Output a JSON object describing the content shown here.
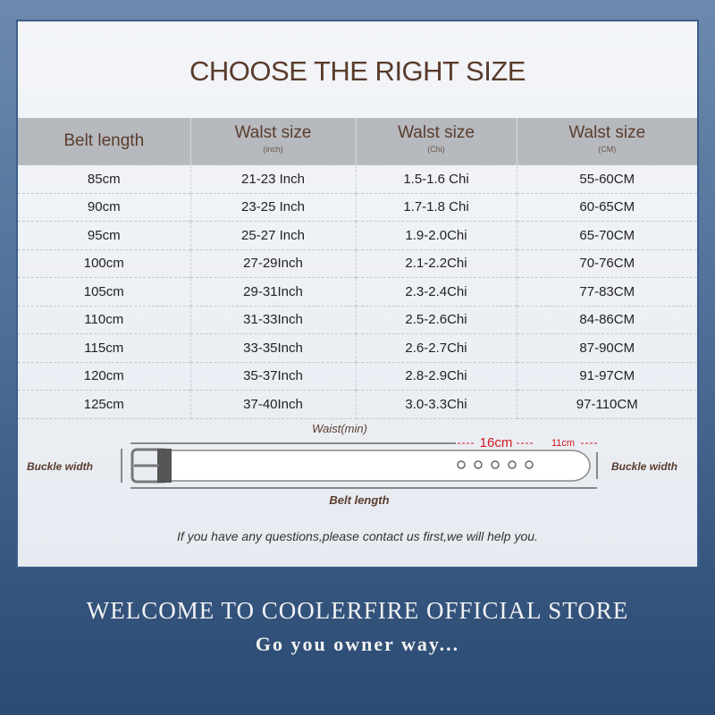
{
  "title": "CHOOSE THE RIGHT SIZE",
  "table": {
    "headers": [
      {
        "label": "Belt length",
        "unit": ""
      },
      {
        "label": "Walst size",
        "unit": "(inch)"
      },
      {
        "label": "Walst size",
        "unit": "(Chi)"
      },
      {
        "label": "Walst size",
        "unit": "(CM)"
      }
    ],
    "rows": [
      [
        "85cm",
        "21-23 Inch",
        "1.5-1.6 Chi",
        "55-60CM"
      ],
      [
        "90cm",
        "23-25 Inch",
        "1.7-1.8 Chi",
        "60-65CM"
      ],
      [
        "95cm",
        "25-27 Inch",
        "1.9-2.0Chi",
        "65-70CM"
      ],
      [
        "100cm",
        "27-29Inch",
        "2.1-2.2Chi",
        "70-76CM"
      ],
      [
        "105cm",
        "29-31Inch",
        "2.3-2.4Chi",
        "77-83CM"
      ],
      [
        "110cm",
        "31-33Inch",
        "2.5-2.6Chi",
        "84-86CM"
      ],
      [
        "115cm",
        "33-35Inch",
        "2.6-2.7Chi",
        "87-90CM"
      ],
      [
        "120cm",
        "35-37Inch",
        "2.8-2.9Chi",
        "91-97CM"
      ],
      [
        "125cm",
        "37-40Inch",
        "3.0-3.3Chi",
        "97-110CM"
      ]
    ]
  },
  "diagram": {
    "waist_label": "Waist(min)",
    "hole_span": "16cm",
    "tip_span": "11cm",
    "buckle_width_left": "Buckle width",
    "buckle_width_right": "Buckle width",
    "belt_length_label": "Belt length",
    "accent_color": "#d0191f"
  },
  "note": "If you have any questions,please contact us first,we will help you.",
  "footer": {
    "welcome": "WELCOME TO COOLERFIRE OFFICIAL STORE",
    "slogan": "Go you owner way..."
  }
}
